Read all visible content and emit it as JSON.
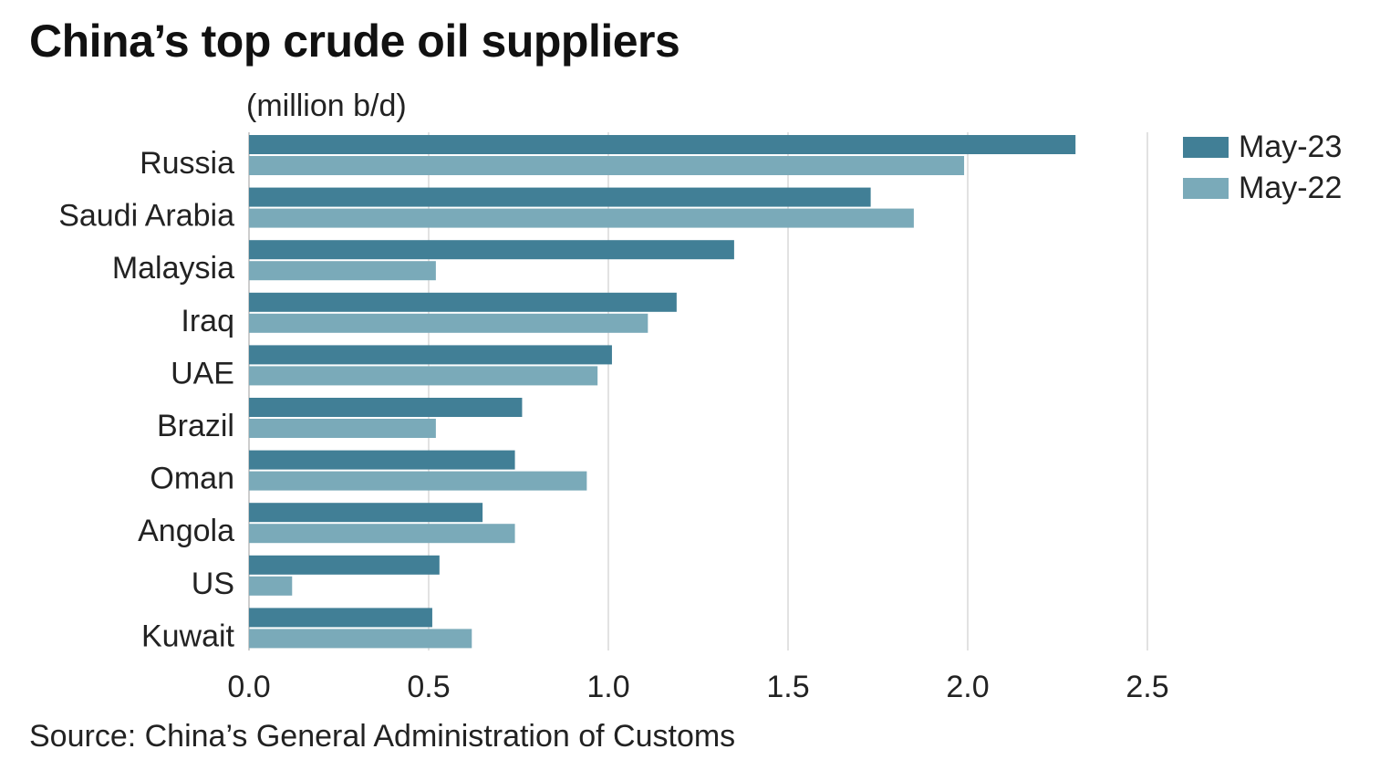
{
  "chart_data": {
    "type": "bar",
    "orientation": "horizontal",
    "title": "China’s top crude oil suppliers",
    "ylabel": "(million b/d)",
    "xlabel": "",
    "categories": [
      "Russia",
      "Saudi Arabia",
      "Malaysia",
      "Iraq",
      "UAE",
      "Brazil",
      "Oman",
      "Angola",
      "US",
      "Kuwait"
    ],
    "series": [
      {
        "name": "May-23",
        "color": "#417f96",
        "values": [
          2.3,
          1.73,
          1.35,
          1.19,
          1.01,
          0.76,
          0.74,
          0.65,
          0.53,
          0.51
        ]
      },
      {
        "name": "May-22",
        "color": "#7aaab9",
        "values": [
          1.99,
          1.85,
          0.52,
          1.11,
          0.97,
          0.52,
          0.94,
          0.74,
          0.12,
          0.62
        ]
      }
    ],
    "xlim": [
      0,
      2.5
    ],
    "xticks": [
      "0.0",
      "0.5",
      "1.0",
      "1.5",
      "2.0",
      "2.5"
    ],
    "grid": true,
    "legend": "top-right",
    "source": "Source: China’s General Administration of Customs"
  }
}
